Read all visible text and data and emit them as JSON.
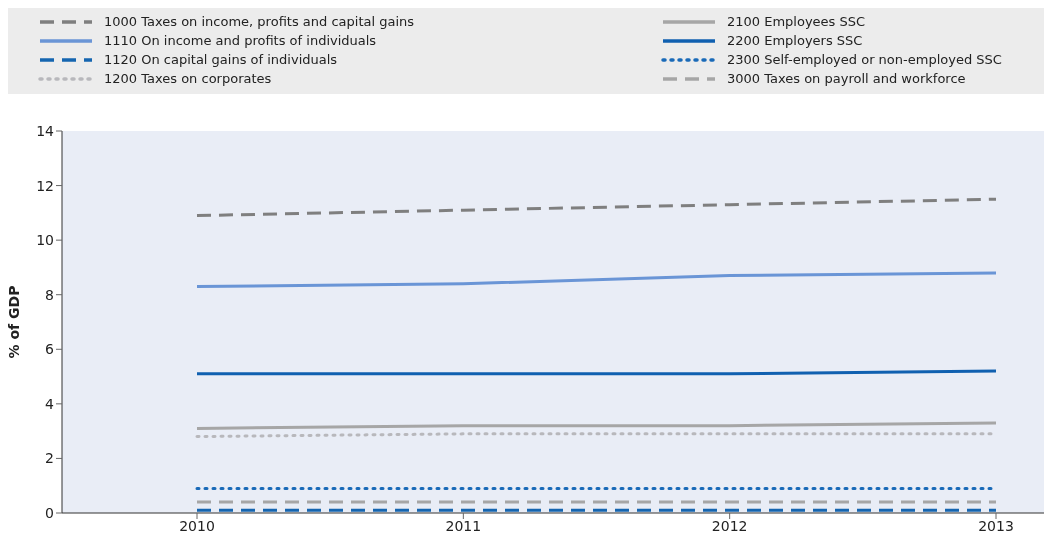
{
  "chart_data": {
    "type": "line",
    "ylabel": "% of GDP",
    "categories": [
      "2010",
      "2011",
      "2012",
      "2013"
    ],
    "ylim": [
      0,
      14
    ],
    "yticks": [
      0,
      2,
      4,
      6,
      8,
      10,
      12,
      14
    ],
    "grid": false,
    "legend": "top",
    "marker": "none",
    "series": [
      {
        "name": "1000 Taxes on income, profits and capital gains",
        "color": "#7f7f7f",
        "line_style": "dashed",
        "values": [
          10.9,
          11.1,
          11.3,
          11.5
        ]
      },
      {
        "name": "1110 On income and profits of individuals",
        "color": "#6a95d6",
        "line_style": "solid",
        "values": [
          8.3,
          8.4,
          8.7,
          8.8
        ]
      },
      {
        "name": "1120 On capital gains of individuals",
        "color": "#1565b0",
        "line_style": "dashed",
        "values": [
          0.1,
          0.1,
          0.1,
          0.1
        ]
      },
      {
        "name": "1200 Taxes on corporates",
        "color": "#b8b8bc",
        "line_style": "dotted",
        "values": [
          2.8,
          2.9,
          2.9,
          2.9
        ]
      },
      {
        "name": "2100 Employees SSC",
        "color": "#a6a6a6",
        "line_style": "solid",
        "values": [
          3.1,
          3.2,
          3.2,
          3.3
        ]
      },
      {
        "name": "2200 Employers SSC",
        "color": "#1060b0",
        "line_style": "solid",
        "values": [
          5.1,
          5.1,
          5.1,
          5.2
        ]
      },
      {
        "name": "2300 Self-employed or non-employed SSC",
        "color": "#1a6ab8",
        "line_style": "dotted",
        "values": [
          0.9,
          0.9,
          0.9,
          0.9
        ]
      },
      {
        "name": "3000 Taxes on payroll and workforce",
        "color": "#a6a6a6",
        "line_style": "dashed",
        "values": [
          0.4,
          0.4,
          0.4,
          0.4
        ]
      }
    ]
  }
}
